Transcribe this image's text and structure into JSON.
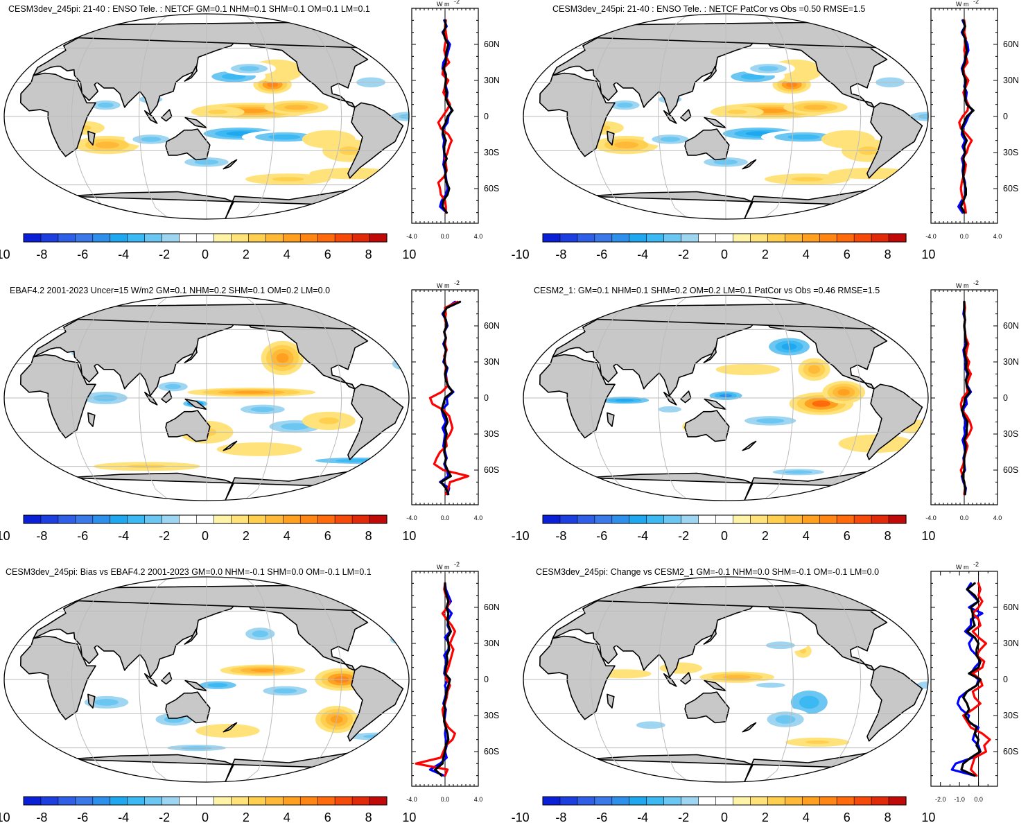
{
  "figure": {
    "colorbar": {
      "colors": [
        "#0a1fd6",
        "#1e3fe0",
        "#2f5fe6",
        "#3b78e8",
        "#2f90ec",
        "#1fa8f0",
        "#3cb8f2",
        "#6bc6f2",
        "#9ed6f2",
        "#ffffff",
        "#ffffff",
        "#fff3a8",
        "#ffe37a",
        "#ffcf50",
        "#ffb938",
        "#ffa020",
        "#ff8614",
        "#ff6a0c",
        "#f54a0a",
        "#e02a0a",
        "#c00a0a"
      ],
      "labels": [
        "-10",
        "-8",
        "-6",
        "-4",
        "-2",
        "0",
        "2",
        "4",
        "6",
        "8",
        "10"
      ],
      "label_values": [
        -10,
        -8,
        -6,
        -4,
        -2,
        0,
        2,
        4,
        6,
        8,
        10
      ]
    },
    "map_colors": {
      "land": "#c8c8c8",
      "ocean": "#ffffff",
      "coast": "#000000",
      "grid": "#bbbbbb"
    },
    "line_colors": {
      "blue": "#0000ff",
      "red": "#ff0000",
      "black": "#000000"
    },
    "lat_labels": [
      "60N",
      "30N",
      "0",
      "30S",
      "60S"
    ],
    "lat_values": [
      60,
      30,
      0,
      -30,
      -60
    ],
    "unit_label": "W m",
    "unit_power": "-2"
  },
  "chart_data": [
    {
      "type": "heatmap",
      "title": "CESM3dev_245pi: 21-40 : ENSO Tele. : NETCF GM=0.1 NHM=0.1 SHM=0.1 OM=0.1 LM=0.1",
      "pattern": "enso_model",
      "zonal_mean": {
        "xlim": [
          -4,
          4
        ],
        "xticks": [
          "-4.0",
          "0.0",
          "4.0"
        ],
        "xtick_values": [
          -4,
          0,
          4
        ],
        "lat": [
          -80,
          -75,
          -70,
          -65,
          -60,
          -55,
          -50,
          -45,
          -40,
          -35,
          -30,
          -25,
          -20,
          -15,
          -10,
          -5,
          0,
          5,
          10,
          15,
          20,
          25,
          30,
          35,
          40,
          45,
          50,
          55,
          60,
          65,
          70,
          75,
          80
        ],
        "series": [
          {
            "color": "blue",
            "values": [
              0.2,
              -0.6,
              -0.4,
              0.1,
              0.3,
              0.2,
              0.1,
              0.0,
              -0.2,
              -0.1,
              -0.1,
              -0.2,
              -0.1,
              -0.3,
              -0.2,
              0.3,
              0.4,
              0.8,
              0.5,
              0.2,
              0.3,
              0.1,
              0.2,
              -0.1,
              -0.3,
              -0.2,
              0.2,
              0.4,
              0.6,
              0.1,
              -0.3,
              0.2,
              -0.1
            ]
          },
          {
            "color": "red",
            "values": [
              0.1,
              0.1,
              0.0,
              -0.5,
              -0.6,
              -0.8,
              -0.1,
              0.2,
              0.1,
              0.0,
              0.3,
              0.5,
              0.8,
              0.4,
              -0.5,
              -0.8,
              -0.3,
              0.2,
              0.6,
              0.2,
              -0.2,
              0.0,
              0.4,
              -0.3,
              -0.2,
              0.5,
              0.1,
              -0.1,
              0.0,
              0.2,
              0.1,
              0.0,
              0.1
            ]
          },
          {
            "color": "black",
            "values": [
              0.2,
              -0.3,
              -0.2,
              0.3,
              0.5,
              0.2,
              0.0,
              0.1,
              -0.1,
              0.2,
              -0.1,
              -0.1,
              0.1,
              -0.2,
              -0.3,
              0.1,
              0.3,
              0.9,
              0.4,
              0.1,
              0.2,
              0.0,
              0.1,
              0.1,
              -0.2,
              0.1,
              0.1,
              0.2,
              0.4,
              0.0,
              -0.2,
              0.1,
              0.0
            ]
          }
        ]
      }
    },
    {
      "type": "heatmap",
      "title": "CESM3dev_245pi: 21-40 : ENSO Tele. : NETCF PatCor vs Obs =0.50 RMSE=1.5",
      "pattern": "enso_model",
      "zonal_mean": {
        "xlim": [
          -4,
          4
        ],
        "xticks": [
          "-4.0",
          "0.0",
          "4.0"
        ],
        "xtick_values": [
          -4,
          0,
          4
        ],
        "lat": [
          -80,
          -75,
          -70,
          -65,
          -60,
          -55,
          -50,
          -45,
          -40,
          -35,
          -30,
          -25,
          -20,
          -15,
          -10,
          -5,
          0,
          5,
          10,
          15,
          20,
          25,
          30,
          35,
          40,
          45,
          50,
          55,
          60,
          65,
          70,
          75,
          80
        ],
        "series": [
          {
            "color": "blue",
            "values": [
              -0.2,
              -0.7,
              -0.3,
              0.2,
              0.1,
              0.1,
              -0.1,
              -0.2,
              -0.1,
              -0.3,
              0.1,
              -0.2,
              0.1,
              -0.3,
              -0.2,
              0.2,
              0.5,
              1.0,
              0.4,
              0.2,
              0.3,
              0.0,
              0.2,
              -0.1,
              -0.3,
              0.0,
              0.2,
              0.5,
              0.4,
              0.1,
              -0.3,
              0.1,
              -0.2
            ]
          },
          {
            "color": "red",
            "values": [
              0.2,
              0.1,
              -0.1,
              -0.3,
              -0.4,
              -0.3,
              -0.1,
              0.1,
              0.2,
              -0.2,
              0.3,
              0.5,
              0.9,
              0.3,
              -0.4,
              -0.6,
              -0.2,
              0.4,
              0.5,
              0.1,
              -0.1,
              0.2,
              0.5,
              0.0,
              -0.1,
              0.4,
              0.2,
              0.0,
              0.1,
              0.2,
              0.0,
              0.1,
              0.0
            ]
          },
          {
            "color": "black",
            "values": [
              0.0,
              -0.4,
              -0.1,
              0.2,
              0.2,
              0.0,
              -0.1,
              -0.1,
              0.0,
              -0.1,
              0.1,
              0.0,
              0.3,
              -0.1,
              -0.3,
              0.0,
              0.3,
              1.1,
              0.3,
              0.1,
              0.1,
              0.1,
              0.2,
              -0.1,
              -0.2,
              0.1,
              0.2,
              0.3,
              0.2,
              0.1,
              -0.2,
              0.1,
              -0.1
            ]
          }
        ]
      }
    },
    {
      "type": "heatmap",
      "title": "EBAF4.2 2001-2023 Uncer=15 W/m2 GM=0.1 NHM=0.2 SHM=0.1 OM=0.2 LM=0.0",
      "pattern": "obs",
      "zonal_mean": {
        "xlim": [
          -4,
          4
        ],
        "xticks": [
          "-4.0",
          "0.0",
          "4.0"
        ],
        "xtick_values": [
          -4,
          0,
          4
        ],
        "lat": [
          -80,
          -75,
          -70,
          -65,
          -60,
          -55,
          -50,
          -45,
          -40,
          -35,
          -30,
          -25,
          -20,
          -15,
          -10,
          -5,
          0,
          5,
          10,
          15,
          20,
          25,
          30,
          35,
          40,
          45,
          50,
          55,
          60,
          65,
          70,
          75,
          80
        ],
        "series": [
          {
            "color": "blue",
            "values": [
              0.3,
              0.5,
              -0.6,
              0.4,
              0.2,
              -0.1,
              0.2,
              0.0,
              -0.2,
              -0.1,
              0.0,
              -0.3,
              0.1,
              -0.2,
              -0.4,
              0.3,
              0.2,
              1.0,
              0.3,
              0.2,
              0.1,
              0.3,
              -0.2,
              0.0,
              0.1,
              -0.2,
              0.1,
              -0.1,
              0.3,
              0.1,
              -0.3,
              0.2,
              1.2
            ]
          },
          {
            "color": "red",
            "values": [
              0.1,
              0.4,
              0.6,
              2.8,
              -0.2,
              -1.3,
              -1.0,
              -0.6,
              0.2,
              0.1,
              0.6,
              0.9,
              0.7,
              0.5,
              -0.2,
              -1.5,
              -1.8,
              -0.4,
              0.3,
              0.2,
              0.0,
              0.1,
              0.0,
              -0.1,
              0.2,
              0.0,
              0.1,
              -0.1,
              0.2,
              0.0,
              0.1,
              0.0,
              1.5
            ]
          },
          {
            "color": "black",
            "values": [
              0.4,
              0.1,
              -0.5,
              0.7,
              0.3,
              0.0,
              0.1,
              -0.1,
              0.0,
              0.0,
              0.2,
              0.0,
              0.3,
              0.1,
              -0.4,
              -0.2,
              0.0,
              0.9,
              0.4,
              0.1,
              0.0,
              0.2,
              -0.1,
              0.0,
              0.1,
              -0.1,
              0.1,
              -0.1,
              0.2,
              0.1,
              -0.2,
              0.2,
              1.8
            ]
          }
        ]
      }
    },
    {
      "type": "heatmap",
      "title": "CESM2_1: GM=0.1 NHM=0.1 SHM=0.2 OM=0.2 LM=0.1 PatCor vs Obs =0.46 RMSE=1.5",
      "pattern": "cesm2",
      "zonal_mean": {
        "xlim": [
          -4,
          4
        ],
        "xticks": [
          "-4.0",
          "0.0",
          "4.0"
        ],
        "xtick_values": [
          -4,
          0,
          4
        ],
        "lat": [
          -80,
          -75,
          -70,
          -65,
          -60,
          -55,
          -50,
          -45,
          -40,
          -35,
          -30,
          -25,
          -20,
          -15,
          -10,
          -5,
          0,
          5,
          10,
          15,
          20,
          25,
          30,
          35,
          40,
          45,
          50,
          55,
          60,
          65,
          70,
          75,
          80
        ],
        "series": [
          {
            "color": "blue",
            "values": [
              0.1,
              0.2,
              -0.1,
              -0.3,
              0.1,
              0.0,
              -0.1,
              0.1,
              0.0,
              -0.2,
              0.1,
              0.0,
              0.2,
              -0.1,
              -0.2,
              0.3,
              0.2,
              0.8,
              0.4,
              0.2,
              0.4,
              0.1,
              0.2,
              0.0,
              -0.1,
              0.2,
              0.1,
              0.1,
              0.0,
              0.1,
              -0.1,
              0.0,
              0.0
            ]
          },
          {
            "color": "red",
            "values": [
              0.0,
              0.1,
              0.0,
              -0.2,
              -0.4,
              -0.1,
              0.0,
              0.2,
              0.4,
              0.1,
              0.6,
              0.9,
              0.7,
              0.3,
              -0.3,
              -0.4,
              -0.2,
              0.4,
              0.3,
              0.5,
              0.8,
              0.4,
              0.6,
              0.2,
              0.3,
              0.5,
              0.2,
              0.1,
              0.0,
              0.1,
              0.0,
              0.1,
              0.0
            ]
          },
          {
            "color": "black",
            "values": [
              0.1,
              0.1,
              0.0,
              -0.2,
              0.0,
              0.0,
              0.0,
              0.1,
              0.2,
              0.0,
              0.3,
              0.3,
              0.4,
              0.0,
              -0.3,
              0.0,
              0.1,
              0.7,
              0.3,
              0.2,
              0.5,
              0.2,
              0.3,
              0.1,
              0.0,
              0.3,
              0.1,
              0.1,
              0.0,
              0.1,
              0.0,
              0.0,
              0.0
            ]
          }
        ]
      }
    },
    {
      "type": "heatmap",
      "title": "CESM3dev_245pi: Bias vs EBAF4.2 2001-2023 GM=0.0 NHM=-0.1 SHM=0.0 OM=-0.1 LM=0.1",
      "pattern": "bias",
      "zonal_mean": {
        "xlim": [
          -4,
          4
        ],
        "xticks": [
          "-4.0",
          "0.0",
          "4.0"
        ],
        "xtick_values": [
          -4,
          0,
          4
        ],
        "lat": [
          -80,
          -75,
          -70,
          -65,
          -60,
          -55,
          -50,
          -45,
          -40,
          -35,
          -30,
          -25,
          -20,
          -15,
          -10,
          -5,
          0,
          5,
          10,
          15,
          20,
          25,
          30,
          35,
          40,
          45,
          50,
          55,
          60,
          65,
          70,
          75,
          80
        ],
        "series": [
          {
            "color": "blue",
            "values": [
              -0.1,
              -1.8,
              -0.6,
              0.2,
              0.0,
              0.2,
              0.1,
              0.0,
              0.1,
              -0.1,
              0.0,
              0.1,
              -0.2,
              0.0,
              0.2,
              0.0,
              0.3,
              -0.1,
              0.0,
              0.2,
              -0.1,
              0.4,
              0.5,
              0.0,
              0.6,
              0.3,
              0.4,
              0.8,
              0.2,
              0.7,
              0.4,
              0.1,
              0.0
            ]
          },
          {
            "color": "red",
            "values": [
              0.0,
              0.3,
              -3.5,
              -0.5,
              -0.2,
              0.1,
              0.9,
              1.2,
              0.4,
              0.0,
              -0.2,
              -0.3,
              0.0,
              0.2,
              0.3,
              0.6,
              0.2,
              0.1,
              0.4,
              0.6,
              0.8,
              1.0,
              0.6,
              0.9,
              1.2,
              0.8,
              0.2,
              -0.3,
              0.3,
              0.5,
              0.1,
              -0.1,
              0.0
            ]
          },
          {
            "color": "black",
            "values": [
              -0.4,
              -1.2,
              -0.3,
              -0.2,
              0.0,
              0.1,
              0.4,
              0.3,
              0.1,
              -0.1,
              -0.1,
              0.0,
              -0.1,
              0.1,
              0.2,
              0.4,
              0.6,
              0.0,
              0.1,
              0.3,
              0.2,
              0.5,
              0.4,
              0.3,
              0.7,
              0.4,
              0.3,
              0.4,
              0.2,
              0.4,
              0.2,
              0.0,
              0.0
            ]
          }
        ]
      }
    },
    {
      "type": "heatmap",
      "title": "CESM3dev_245pi: Change vs CESM2_1 GM=-0.1 NHM=0.0 SHM=-0.1 OM=-0.1 LM=0.0",
      "pattern": "change",
      "zonal_mean": {
        "xlim": [
          -2.5,
          1
        ],
        "xticks": [
          "-2.0",
          "-1.0",
          "0.0"
        ],
        "xtick_values": [
          -2,
          -1,
          0
        ],
        "lat": [
          -80,
          -75,
          -70,
          -65,
          -60,
          -55,
          -50,
          -45,
          -40,
          -35,
          -30,
          -25,
          -20,
          -15,
          -10,
          -5,
          0,
          5,
          10,
          15,
          20,
          25,
          30,
          35,
          40,
          45,
          50,
          55,
          60,
          65,
          70,
          75,
          80
        ],
        "series": [
          {
            "color": "blue",
            "values": [
              -0.2,
              -1.4,
              -1.2,
              -0.3,
              0.1,
              0.0,
              -0.3,
              -0.2,
              0.0,
              -0.6,
              -0.5,
              -0.9,
              -1.1,
              -1.0,
              -0.6,
              -0.1,
              0.0,
              -0.4,
              -0.2,
              0.1,
              -0.1,
              -0.4,
              -0.5,
              -0.3,
              -0.7,
              -0.4,
              -0.4,
              0.2,
              -0.5,
              0.0,
              -0.3,
              -0.6,
              -0.4
            ]
          },
          {
            "color": "red",
            "values": [
              -0.1,
              -0.4,
              -0.3,
              -0.2,
              0.4,
              0.3,
              0.6,
              0.2,
              -0.4,
              -0.6,
              -0.8,
              -0.3,
              0.1,
              -0.2,
              -0.3,
              0.2,
              0.1,
              -0.3,
              0.2,
              0.3,
              -0.1,
              0.1,
              0.4,
              0.0,
              -0.3,
              0.1,
              0.0,
              -0.3,
              0.0,
              0.2,
              0.0,
              0.1,
              0.0
            ]
          },
          {
            "color": "black",
            "values": [
              -0.2,
              -0.9,
              -0.8,
              -0.4,
              0.1,
              -0.1,
              0.0,
              -0.2,
              -0.1,
              -0.5,
              -0.7,
              -0.5,
              -0.6,
              -0.8,
              -0.6,
              -0.1,
              0.1,
              -0.5,
              0.0,
              0.1,
              -0.1,
              -0.1,
              0.0,
              -0.2,
              -0.6,
              -0.2,
              -0.3,
              -0.3,
              -0.4,
              0.0,
              -0.2,
              -0.6,
              -0.2
            ]
          }
        ]
      }
    }
  ]
}
